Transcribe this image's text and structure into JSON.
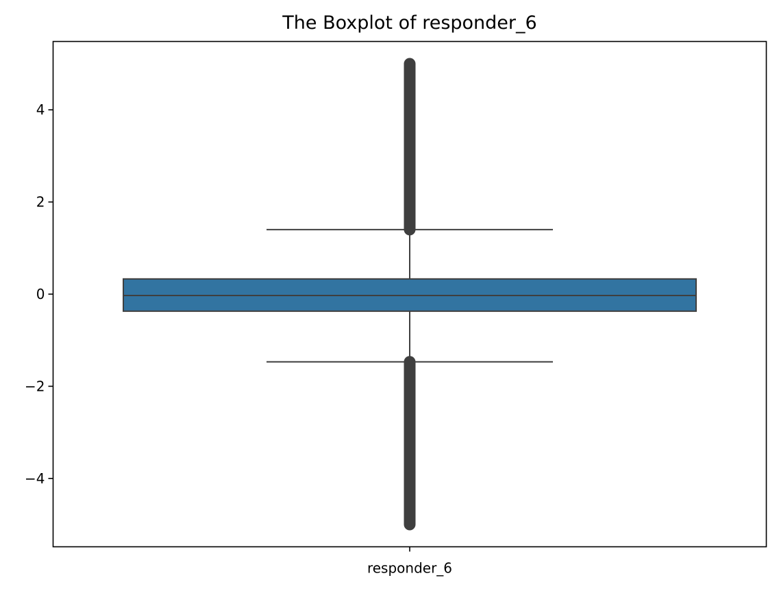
{
  "chart_data": {
    "type": "box",
    "title": "The Boxplot of responder_6",
    "xlabel": "",
    "ylabel": "",
    "categories": [
      "responder_6"
    ],
    "ylim": [
      -5.5,
      5.5
    ],
    "yticks": [
      -4,
      -2,
      0,
      2,
      4
    ],
    "ytick_labels": [
      "−4",
      "−2",
      "0",
      "2",
      "4"
    ],
    "grid": false,
    "box": {
      "q1": -0.37,
      "median": -0.03,
      "q3": 0.33,
      "whisker_low": -1.47,
      "whisker_high": 1.4
    },
    "outliers": {
      "low_range": [
        -5.0,
        -1.47
      ],
      "high_range": [
        1.4,
        5.0
      ]
    },
    "colors": {
      "box_fill": "#3274a1",
      "line": "#3f3f3f",
      "outlier": "#3f3f3f"
    }
  }
}
